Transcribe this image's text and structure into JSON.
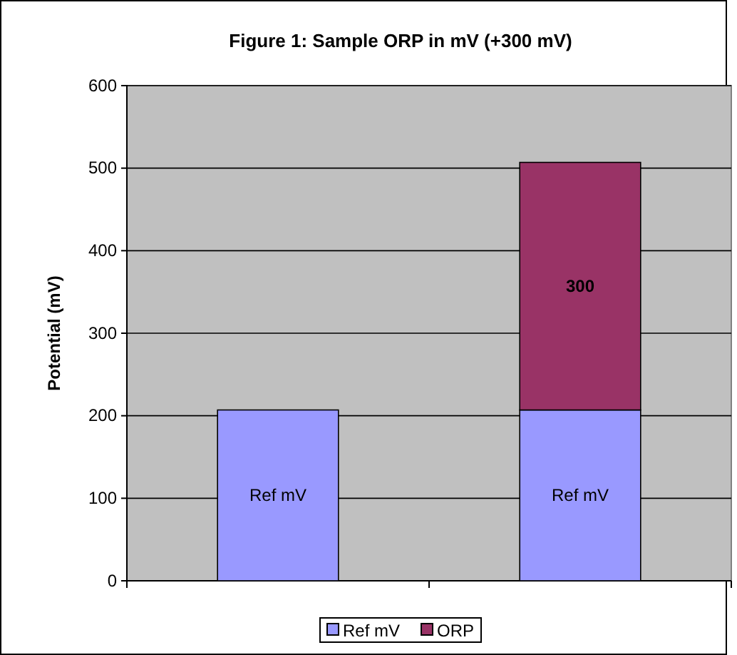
{
  "chart_data": {
    "type": "bar",
    "title": "Figure 1:  Sample ORP in mV (+300 mV)",
    "ylabel": "Potential  (mV)",
    "categories": [
      null,
      null
    ],
    "stacked": true,
    "series": [
      {
        "name": "Ref mV",
        "color": "#9999ff",
        "values": [
          207,
          207
        ],
        "value_labels": [
          "Ref mV",
          "Ref mV"
        ]
      },
      {
        "name": "ORP",
        "color": "#993366",
        "values": [
          null,
          300
        ],
        "value_labels": [
          null,
          "300"
        ]
      }
    ],
    "ylim": [
      0,
      600
    ],
    "yticks": [
      0,
      100,
      200,
      300,
      400,
      500,
      600
    ],
    "grid": "y",
    "legend": "bottom"
  }
}
